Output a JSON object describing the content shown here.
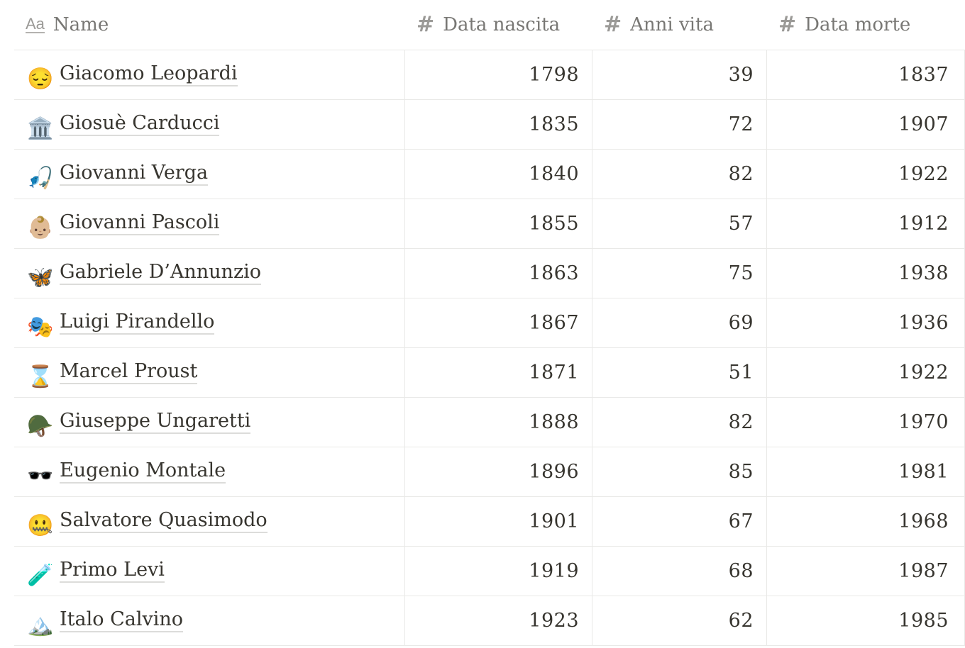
{
  "columns": {
    "name": {
      "label": "Name",
      "icon": "text-type-icon",
      "icon_glyph": "Aa"
    },
    "nascita": {
      "label": "Data nascita",
      "icon": "number-icon",
      "icon_glyph": "#"
    },
    "anni": {
      "label": "Anni vita",
      "icon": "number-icon",
      "icon_glyph": "#"
    },
    "morte": {
      "label": "Data morte",
      "icon": "number-icon",
      "icon_glyph": "#"
    }
  },
  "rows": [
    {
      "emoji": "😔",
      "emoji_name": "pensive-face-icon",
      "name": "Giacomo Leopardi",
      "nascita": "1798",
      "anni": "39",
      "morte": "1837"
    },
    {
      "emoji": "🏛️",
      "emoji_name": "classical-building-icon",
      "name": "Giosuè Carducci",
      "nascita": "1835",
      "anni": "72",
      "morte": "1907"
    },
    {
      "emoji": "🎣",
      "emoji_name": "fishing-pole-icon",
      "name": "Giovanni Verga",
      "nascita": "1840",
      "anni": "82",
      "morte": "1922"
    },
    {
      "emoji": "👶🏼",
      "emoji_name": "baby-icon",
      "name": "Giovanni Pascoli",
      "nascita": "1855",
      "anni": "57",
      "morte": "1912"
    },
    {
      "emoji": "🦋",
      "emoji_name": "butterfly-icon",
      "name": "Gabriele D’Annunzio",
      "nascita": "1863",
      "anni": "75",
      "morte": "1938"
    },
    {
      "emoji": "🎭",
      "emoji_name": "performing-arts-icon",
      "name": "Luigi Pirandello",
      "nascita": "1867",
      "anni": "69",
      "morte": "1936"
    },
    {
      "emoji": "⌛",
      "emoji_name": "hourglass-icon",
      "name": "Marcel Proust",
      "nascita": "1871",
      "anni": "51",
      "morte": "1922"
    },
    {
      "emoji": "🪖",
      "emoji_name": "military-helmet-icon",
      "name": "Giuseppe Ungaretti",
      "nascita": "1888",
      "anni": "82",
      "morte": "1970"
    },
    {
      "emoji": "🕶️",
      "emoji_name": "sunglasses-icon",
      "name": "Eugenio Montale",
      "nascita": "1896",
      "anni": "85",
      "morte": "1981"
    },
    {
      "emoji": "🤐",
      "emoji_name": "zipper-mouth-face-icon",
      "name": "Salvatore Quasimodo",
      "nascita": "1901",
      "anni": "67",
      "morte": "1968"
    },
    {
      "emoji": "🧪",
      "emoji_name": "test-tube-icon",
      "name": "Primo Levi",
      "nascita": "1919",
      "anni": "68",
      "morte": "1987"
    },
    {
      "emoji": "🏔️",
      "emoji_name": "mountain-icon",
      "name": "Italo Calvino",
      "nascita": "1923",
      "anni": "62",
      "morte": "1985"
    }
  ]
}
